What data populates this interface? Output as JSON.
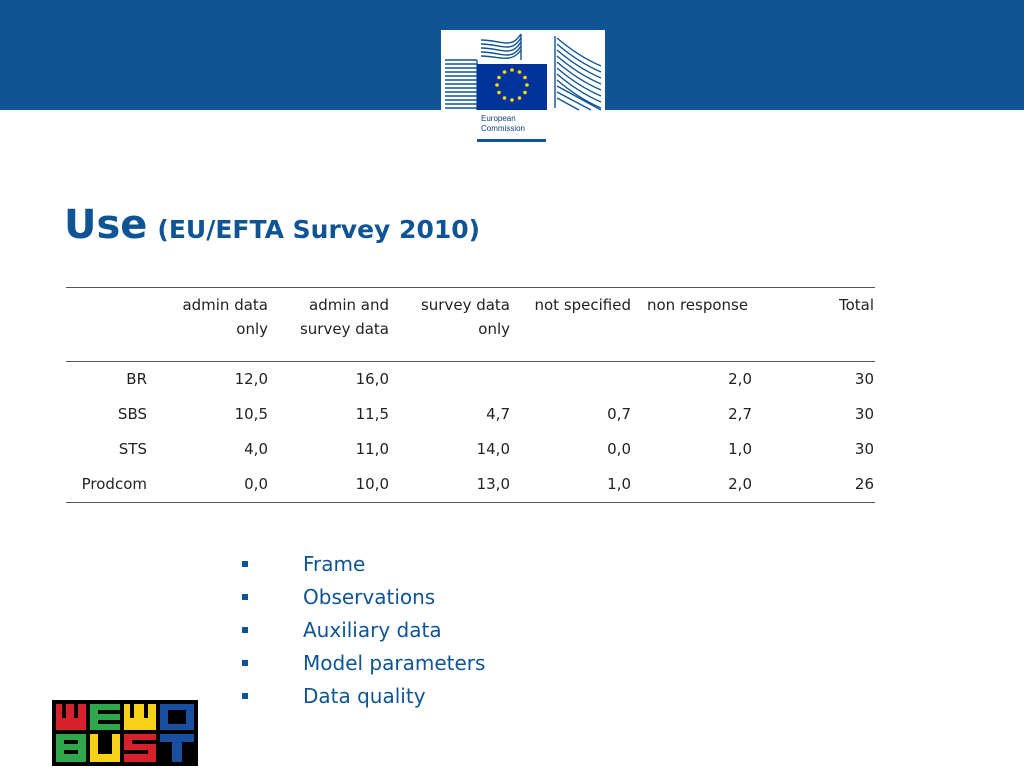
{
  "header": {
    "logo": {
      "org_name_line1": "European",
      "org_name_line2": "Commission",
      "colors": {
        "band": "#0f5494",
        "flag": "#003399",
        "stars": "#ffdd00"
      }
    }
  },
  "title": {
    "main": "Use",
    "sub": "(EU/EFTA Survey 2010)"
  },
  "table": {
    "columns": [
      {
        "line1": "",
        "line2": ""
      },
      {
        "line1": "admin data",
        "line2": "only"
      },
      {
        "line1": "admin and",
        "line2": "survey data"
      },
      {
        "line1": "survey data",
        "line2": "only"
      },
      {
        "line1": "not specified",
        "line2": ""
      },
      {
        "line1": "non response",
        "line2": ""
      },
      {
        "line1": "Total",
        "line2": ""
      }
    ],
    "rows": [
      {
        "name": "BR",
        "cells": [
          "12,0",
          "16,0",
          "",
          "",
          "2,0",
          "30"
        ]
      },
      {
        "name": "SBS",
        "cells": [
          "10,5",
          "11,5",
          "4,7",
          "0,7",
          "2,7",
          "30"
        ]
      },
      {
        "name": "STS",
        "cells": [
          "4,0",
          "11,0",
          "14,0",
          "0,0",
          "1,0",
          "30"
        ]
      },
      {
        "name": "Prodcom",
        "cells": [
          "0,0",
          "10,0",
          "13,0",
          "1,0",
          "2,0",
          "26"
        ]
      }
    ]
  },
  "bullets": [
    "Frame",
    "Observations",
    "Auxiliary data",
    "Model parameters",
    "Data quality"
  ],
  "footer_logo": {
    "icon": "memobust-logo",
    "colors": [
      "#d6202a",
      "#2ea84b",
      "#f7d117",
      "#1a4fa0",
      "#000000"
    ]
  }
}
